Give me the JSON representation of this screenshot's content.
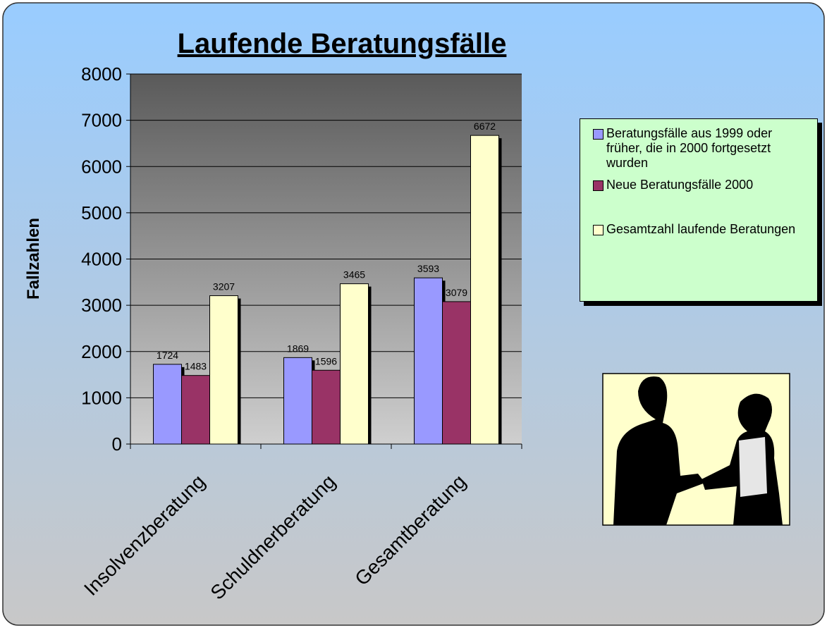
{
  "chart_data": {
    "type": "bar",
    "title": "Laufende Beratungsfälle",
    "y_label": "Fallzahlen",
    "categories": [
      "Insolvenzberatung",
      "Schuldnerberatung",
      "Gesamtberatung"
    ],
    "series": [
      {
        "name": "Beratungsfälle aus 1999 oder früher, die in 2000 fortgesetzt wurden",
        "color": "#9999ff",
        "values": [
          1724,
          1869,
          3593
        ]
      },
      {
        "name": "Neue Beratungsfälle 2000",
        "color": "#993366",
        "values": [
          1483,
          1596,
          3079
        ]
      },
      {
        "name": "Gesamtzahl laufende Beratungen",
        "color": "#ffffcc",
        "values": [
          3207,
          3465,
          6672
        ]
      }
    ],
    "ylim": [
      0,
      8000
    ],
    "yticks": [
      0,
      1000,
      2000,
      3000,
      4000,
      5000,
      6000,
      7000,
      8000
    ],
    "grid": true,
    "legend": "right"
  }
}
